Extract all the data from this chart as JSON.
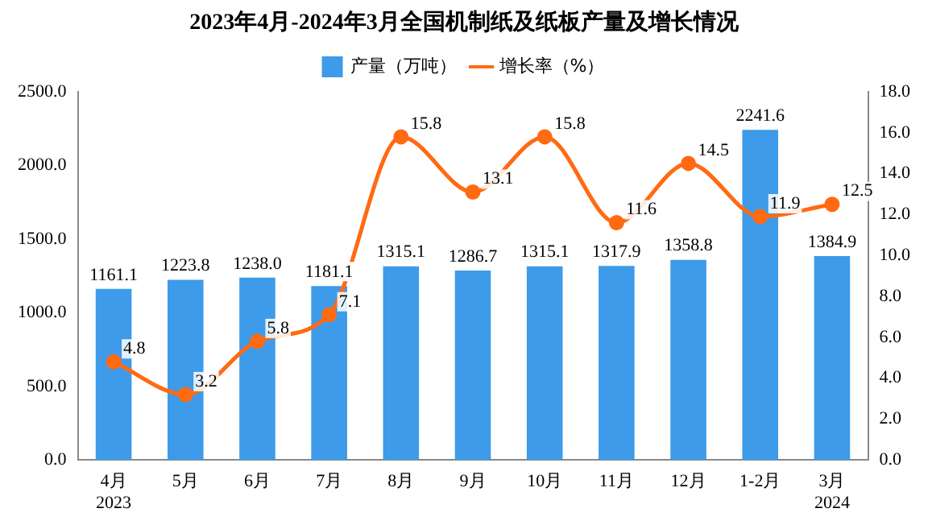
{
  "chart_data": {
    "type": "bar",
    "title": "2023年4月-2024年3月全国机制纸及纸板产量及增长情况",
    "categories": [
      "4月\n2023",
      "5月",
      "6月",
      "7月",
      "8月",
      "9月",
      "10月",
      "11月",
      "12月",
      "1-2月",
      "3月\n2024"
    ],
    "series": [
      {
        "name": "产量（万吨）",
        "color": "#3d9be9",
        "values": [
          1161.1,
          1223.8,
          1238.0,
          1181.1,
          1315.1,
          1286.7,
          1315.1,
          1317.9,
          1358.8,
          2241.6,
          1384.9
        ],
        "value_labels": [
          "1161.1",
          "1223.8",
          "1238.0",
          "1181.1",
          "1315.1",
          "1286.7",
          "1315.1",
          "1317.9",
          "1358.8",
          "2241.6",
          "1384.9"
        ]
      },
      {
        "name": "增长率（%）",
        "type": "line",
        "axis": "y2",
        "color": "#ff6a13",
        "marker": "circle",
        "values": [
          4.8,
          3.2,
          5.8,
          7.1,
          15.8,
          13.1,
          15.8,
          11.6,
          14.5,
          11.9,
          12.5
        ],
        "value_labels": [
          "4.8",
          "3.2",
          "5.8",
          "7.1",
          "15.8",
          "13.1",
          "15.8",
          "11.6",
          "14.5",
          "11.9",
          "12.5"
        ]
      }
    ],
    "ylim": [
      0,
      2500
    ],
    "yticks": [
      {
        "value": 0,
        "label": "0.0"
      },
      {
        "value": 500,
        "label": "500.0"
      },
      {
        "value": 1000,
        "label": "1000.0"
      },
      {
        "value": 1500,
        "label": "1500.0"
      },
      {
        "value": 2000,
        "label": "2000.0"
      },
      {
        "value": 2500,
        "label": "2500.0"
      }
    ],
    "y2lim": [
      0,
      18
    ],
    "y2ticks": [
      {
        "value": 0,
        "label": "0.0"
      },
      {
        "value": 2,
        "label": "2.0"
      },
      {
        "value": 4,
        "label": "4.0"
      },
      {
        "value": 6,
        "label": "6.0"
      },
      {
        "value": 8,
        "label": "8.0"
      },
      {
        "value": 10,
        "label": "10.0"
      },
      {
        "value": 12,
        "label": "12.0"
      },
      {
        "value": 14,
        "label": "14.0"
      },
      {
        "value": 16,
        "label": "16.0"
      },
      {
        "value": 18,
        "label": "18.0"
      }
    ],
    "grid": false,
    "legend": "top"
  }
}
